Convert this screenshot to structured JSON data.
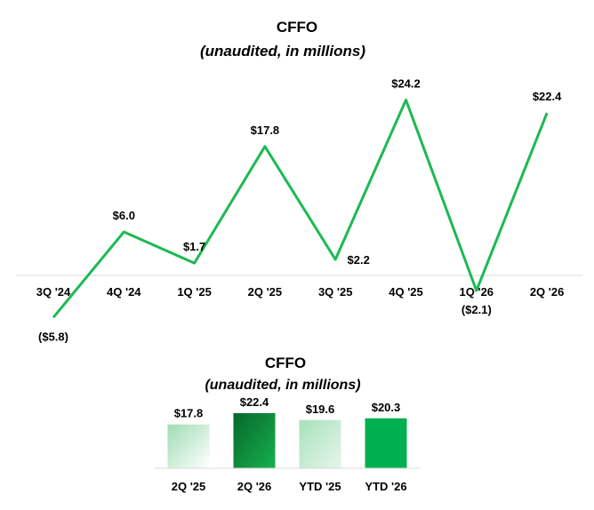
{
  "chart_data": [
    {
      "type": "line",
      "title": "CFFO",
      "subtitle": "(unaudited, in millions)",
      "categories": [
        "3Q '24",
        "4Q '24",
        "1Q '25",
        "2Q '25",
        "3Q '25",
        "4Q '25",
        "1Q '26",
        "2Q '26"
      ],
      "values": [
        -5.8,
        6.0,
        1.7,
        17.8,
        2.2,
        24.2,
        -2.1,
        22.4
      ],
      "data_labels": [
        "($5.8)",
        "$6.0",
        "$1.7",
        "$17.8",
        "$2.2",
        "$24.2",
        "($2.1)",
        "$22.4"
      ],
      "ylim": [
        -6,
        25
      ],
      "line_color": "#1db954",
      "grid": false,
      "legend": "none"
    },
    {
      "type": "bar",
      "title": "CFFO",
      "subtitle": "(unaudited, in millions)",
      "categories": [
        "2Q '25",
        "2Q '26",
        "YTD '25",
        "YTD '26"
      ],
      "values": [
        17.8,
        22.4,
        19.6,
        20.3
      ],
      "data_labels": [
        "$17.8",
        "$22.4",
        "$19.6",
        "$20.3"
      ],
      "ylim": [
        0,
        22.4
      ],
      "bar_colors": [
        "#bfe8cc",
        "#0a8a3c",
        "#bfe8cc",
        "#00b050"
      ],
      "grid": false,
      "legend": "none"
    }
  ]
}
